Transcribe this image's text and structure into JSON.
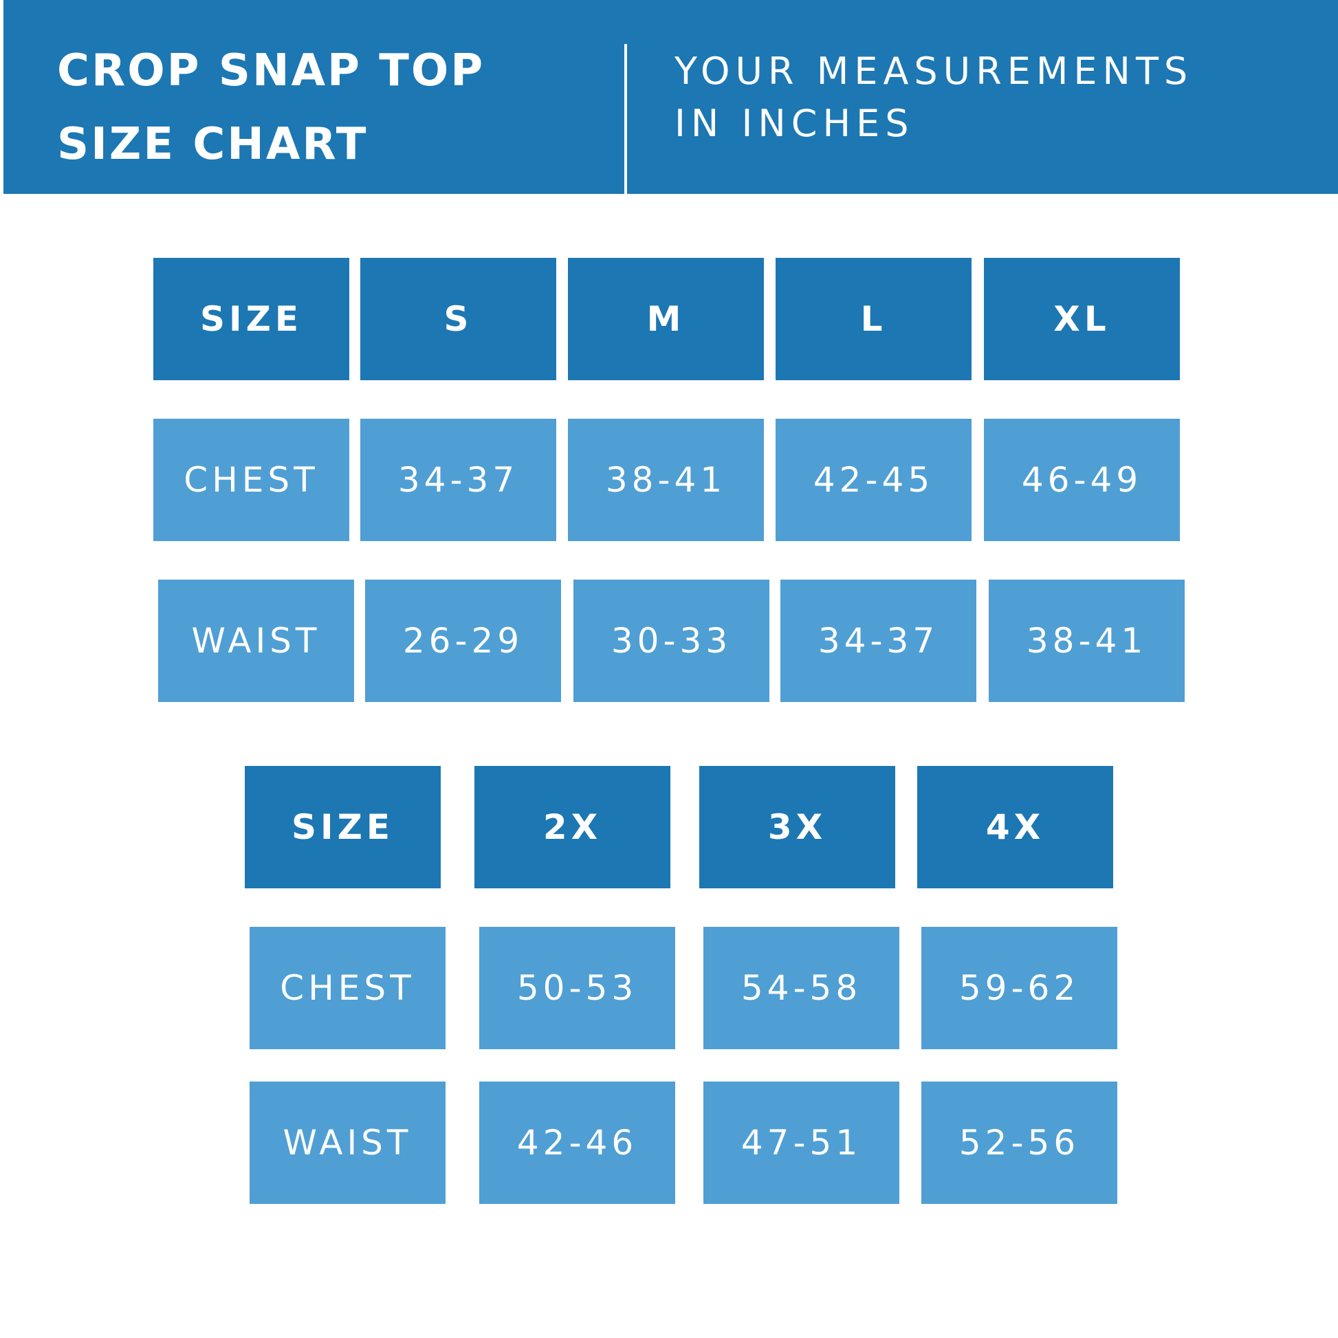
{
  "header": {
    "title_line1": "CROP SNAP TOP",
    "title_line2": "SIZE CHART",
    "subtitle_line1": "YOUR MEASUREMENTS",
    "subtitle_line2": "IN INCHES"
  },
  "colors": {
    "header_blue": "#1c77b3",
    "cell_blue": "#4f9fd4",
    "text": "#ffffff"
  },
  "table1": {
    "size_row": [
      "SIZE",
      "S",
      "M",
      "L",
      "XL"
    ],
    "chest_row": [
      "CHEST",
      "34-37",
      "38-41",
      "42-45",
      "46-49"
    ],
    "waist_row": [
      "WAIST",
      "26-29",
      "30-33",
      "34-37",
      "38-41"
    ]
  },
  "table2": {
    "size_row": [
      "SIZE",
      "2X",
      "3X",
      "4X"
    ],
    "chest_row": [
      "CHEST",
      "50-53",
      "54-58",
      "59-62"
    ],
    "waist_row": [
      "WAIST",
      "42-46",
      "47-51",
      "52-56"
    ]
  }
}
